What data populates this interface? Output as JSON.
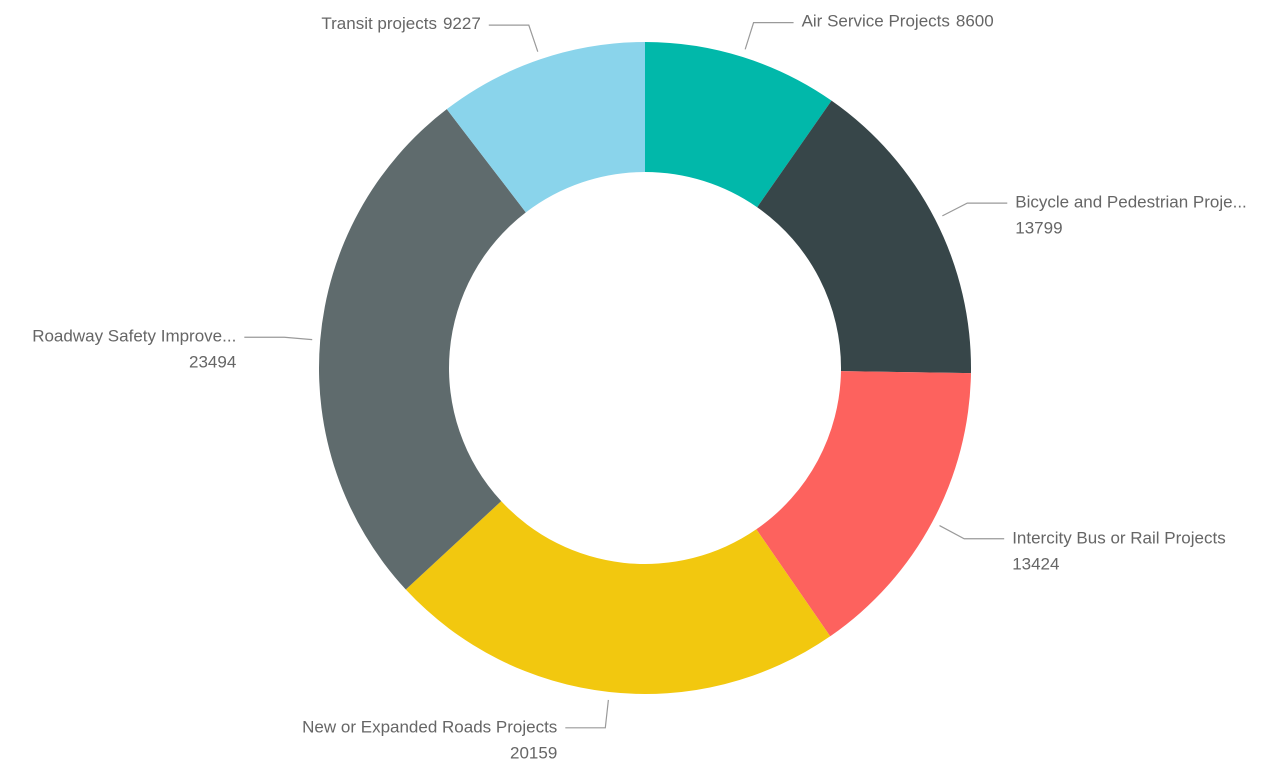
{
  "chart_data": {
    "type": "donut",
    "categories": [
      "Air Service Projects",
      "Bicycle and Pedestrian Proje...",
      "Intercity Bus or Rail Projects",
      "New or Expanded Roads Projects",
      "Roadway Safety Improve...",
      "Transit projects"
    ],
    "values": [
      8600,
      13799,
      13424,
      20159,
      23494,
      9227
    ],
    "colors": [
      "#01b8aa",
      "#374649",
      "#fd625e",
      "#f2c80f",
      "#5f6b6d",
      "#8ad4eb"
    ]
  }
}
